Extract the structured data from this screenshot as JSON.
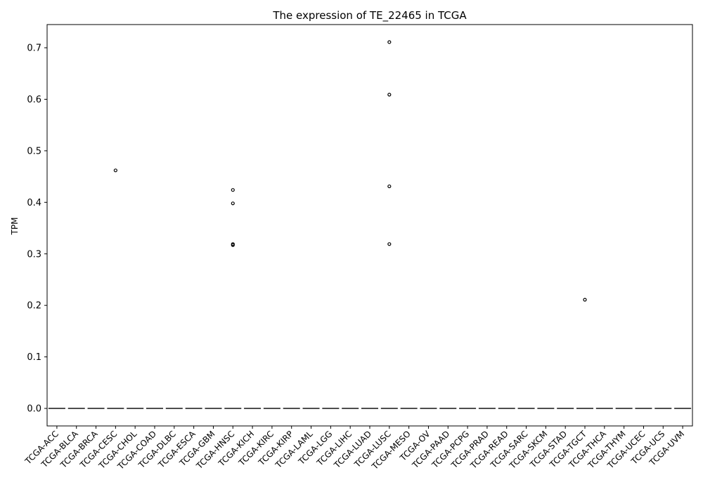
{
  "chart_data": {
    "type": "box",
    "title": "The expression of TE_22465 in TCGA",
    "xlabel": "",
    "ylabel": "TPM",
    "ylim": [
      -0.034,
      0.745
    ],
    "yticks": [
      0.0,
      0.1,
      0.2,
      0.3,
      0.4,
      0.5,
      0.6,
      0.7
    ],
    "ytick_labels": [
      "0.0",
      "0.1",
      "0.2",
      "0.3",
      "0.4",
      "0.5",
      "0.6",
      "0.7"
    ],
    "grid": false,
    "categories": [
      "TCGA-ACC",
      "TCGA-BLCA",
      "TCGA-BRCA",
      "TCGA-CESC",
      "TCGA-CHOL",
      "TCGA-COAD",
      "TCGA-DLBC",
      "TCGA-ESCA",
      "TCGA-GBM",
      "TCGA-HNSC",
      "TCGA-KICH",
      "TCGA-KIRC",
      "TCGA-KIRP",
      "TCGA-LAML",
      "TCGA-LGG",
      "TCGA-LIHC",
      "TCGA-LUAD",
      "TCGA-LUSC",
      "TCGA-MESO",
      "TCGA-OV",
      "TCGA-PAAD",
      "TCGA-PCPG",
      "TCGA-PRAD",
      "TCGA-READ",
      "TCGA-SARC",
      "TCGA-SKCM",
      "TCGA-STAD",
      "TCGA-TGCT",
      "TCGA-THCA",
      "TCGA-THYM",
      "TCGA-UCEC",
      "TCGA-UCS",
      "TCGA-UVM"
    ],
    "medians": [
      0,
      0,
      0,
      0,
      0,
      0,
      0,
      0,
      0,
      0,
      0,
      0,
      0,
      0,
      0,
      0,
      0,
      0,
      0,
      0,
      0,
      0,
      0,
      0,
      0,
      0,
      0,
      0,
      0,
      0,
      0,
      0,
      0
    ],
    "outliers": [
      {
        "category": "TCGA-CESC",
        "values": [
          0.462
        ]
      },
      {
        "category": "TCGA-HNSC",
        "values": [
          0.424,
          0.398,
          0.319,
          0.317
        ]
      },
      {
        "category": "TCGA-LUSC",
        "values": [
          0.711,
          0.609,
          0.431,
          0.319
        ]
      },
      {
        "category": "TCGA-TGCT",
        "values": [
          0.211
        ]
      }
    ],
    "box_color": "#4d4d4d",
    "outlier_edge_color": "#000000"
  }
}
